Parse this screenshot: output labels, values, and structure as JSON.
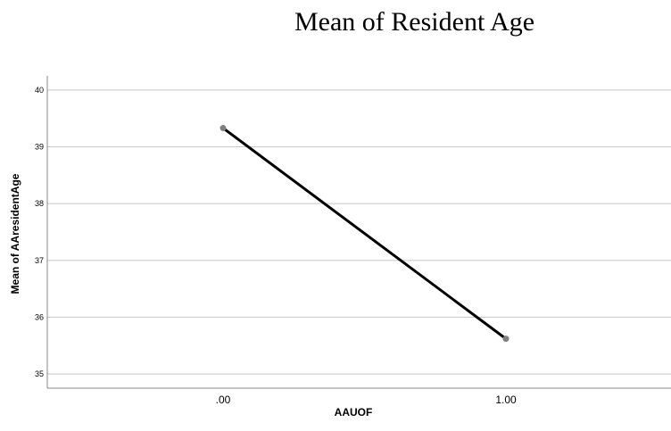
{
  "chart_data": {
    "type": "line",
    "title": "Mean of Resident Age",
    "xlabel": "AAUOF",
    "ylabel": "Mean of AAresidentAge",
    "categories": [
      ".00",
      "1.00"
    ],
    "series": [
      {
        "values": [
          39.33,
          35.62
        ]
      }
    ],
    "yticks": [
      "35",
      "36",
      "37",
      "38",
      "39",
      "40"
    ],
    "ylim": [
      34.75,
      40.25
    ],
    "grid": true,
    "colors": {
      "line": "#000000",
      "marker": "#808080",
      "grid": "#c8c8c8",
      "axis": "#888888"
    }
  }
}
